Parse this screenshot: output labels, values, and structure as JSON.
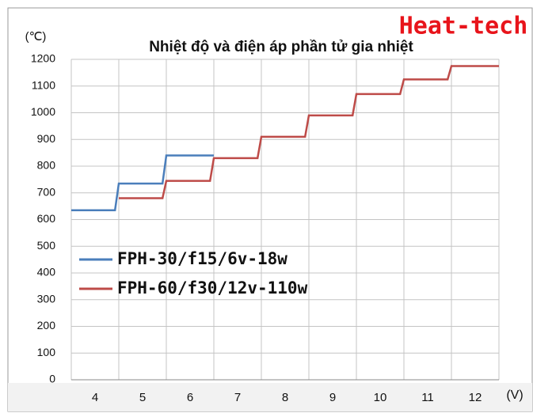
{
  "chart_data": {
    "type": "line",
    "title": "Nhiệt độ và điện áp phần tử gia nhiệt",
    "brand": "Heat-tech",
    "y_unit": "(℃)",
    "x_unit": "(V)",
    "xlim": [
      3.5,
      12.5
    ],
    "xticks": [
      4,
      5,
      6,
      7,
      8,
      9,
      10,
      11,
      12
    ],
    "ylim": [
      0,
      1200
    ],
    "yticks": [
      0,
      100,
      200,
      300,
      400,
      500,
      600,
      700,
      800,
      900,
      1000,
      1100,
      1200
    ],
    "grid": true,
    "legend": "left",
    "series": [
      {
        "name": "FPH-30/f15/6v-18w",
        "color": "#4a7ebb",
        "x": [
          3.5,
          4.42,
          4.5,
          5.42,
          5.5,
          6.5
        ],
        "values": [
          635,
          635,
          735,
          735,
          840,
          840
        ]
      },
      {
        "name": "FPH-60/f30/12v-110w",
        "color": "#be4b48",
        "x": [
          4.5,
          5.42,
          5.5,
          6.42,
          6.5,
          7.42,
          7.5,
          8.42,
          8.5,
          9.42,
          9.5,
          10.42,
          10.5,
          11.42,
          11.5,
          12.5
        ],
        "values": [
          680,
          680,
          745,
          745,
          830,
          830,
          910,
          910,
          990,
          990,
          1070,
          1070,
          1125,
          1125,
          1175,
          1175
        ]
      }
    ]
  }
}
